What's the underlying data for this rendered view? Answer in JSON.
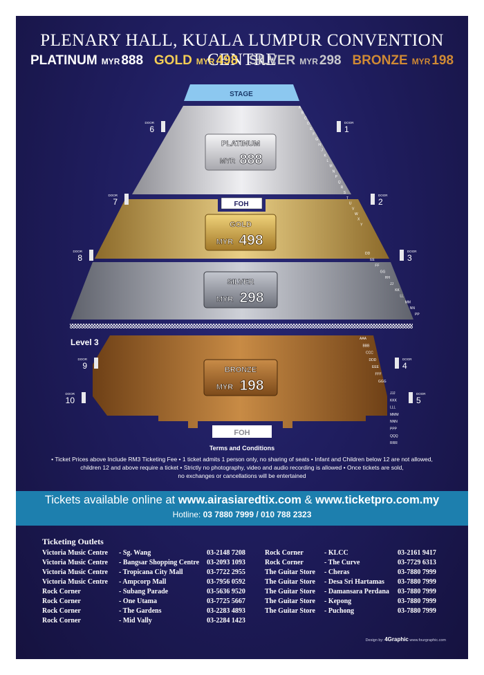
{
  "title": "PLENARY HALL, KUALA LUMPUR CONVENTION CENTRE",
  "prices": {
    "platinum": {
      "name": "PLATINUM",
      "currency": "MYR",
      "amount": "888"
    },
    "gold": {
      "name": "GOLD",
      "currency": "MYR",
      "amount": "498"
    },
    "silver": {
      "name": "SILVER",
      "currency": "MYR",
      "amount": "298"
    },
    "bronze": {
      "name": "BRONZE",
      "currency": "MYR",
      "amount": "198"
    }
  },
  "map": {
    "stage": "STAGE",
    "foh": "FOH",
    "level": "Level 3",
    "door_label": "DOOR",
    "doors": [
      "6",
      "1",
      "7",
      "2",
      "8",
      "3",
      "9",
      "4",
      "10",
      "5"
    ],
    "rows_upper": [
      "A",
      "B",
      "C",
      "D",
      "E",
      "F",
      "G",
      "H",
      "J",
      "K",
      "L",
      "M",
      "N",
      "P",
      "Q",
      "R",
      "S",
      "T",
      "U",
      "V",
      "W",
      "X",
      "Y",
      "DD",
      "EE",
      "FF",
      "GG",
      "HH",
      "JJ",
      "KK",
      "LL",
      "MM",
      "NN",
      "PP"
    ],
    "rows_lower": [
      "AAA",
      "BBB",
      "CCC",
      "DDD",
      "EEE",
      "FFF",
      "GGG",
      "JJJ",
      "KKK",
      "LLL",
      "MMM",
      "NNN",
      "PPP",
      "QQQ",
      "RRR"
    ],
    "colors": {
      "platinum": "#c9c9cd",
      "gold": "#c9a552",
      "silver": "#9da0aa",
      "bronze": "#a76c2c",
      "stage": "#8cc8f0"
    }
  },
  "terms": {
    "heading": "Terms and Conditions",
    "line1": "• Ticket Prices above Include RM3 Ticketing Fee • 1 ticket admits 1 person only, no sharing of seats • Infant and Children below 12 are not allowed,",
    "line2": "children 12 and above require a ticket • Strictly no photography, video and audio recording is allowed • Once tickets are sold,",
    "line3": "no exchanges or cancellations will be entertained"
  },
  "band": {
    "pre": "Tickets available online at",
    "site1": "www.airasiaredtix.com",
    "amp": "&",
    "site2": "www.ticketpro.com.my",
    "hotline_label": "Hotline:",
    "hotline": "03 7880 7999 / 010 788 2323",
    "color": "#1d7fae"
  },
  "outlets": {
    "heading": "Ticketing Outlets",
    "left": [
      {
        "name": "Victoria Music Centre",
        "loc": "- Sg. Wang",
        "phone": "03-2148 7208"
      },
      {
        "name": "Victoria Music Centre",
        "loc": "- Bangsar Shopping Centre",
        "phone": "03-2093 1093"
      },
      {
        "name": "Victoria Music Centre",
        "loc": "- Tropicana City Mall",
        "phone": "03-7722 2955"
      },
      {
        "name": "Victoria Music Centre",
        "loc": "- Ampcorp Mall",
        "phone": "03-7956 0592"
      },
      {
        "name": "Rock Corner",
        "loc": "- Subang Parade",
        "phone": "03-5636 9520"
      },
      {
        "name": "Rock Corner",
        "loc": "- One Utama",
        "phone": "03-7725 5667"
      },
      {
        "name": "Rock Corner",
        "loc": "- The Gardens",
        "phone": "03-2283 4893"
      },
      {
        "name": "Rock Corner",
        "loc": "- Mid Vally",
        "phone": "03-2284 1423"
      }
    ],
    "right": [
      {
        "name": "Rock Corner",
        "loc": "- KLCC",
        "phone": "03-2161 9417"
      },
      {
        "name": "Rock Corner",
        "loc": "- The Curve",
        "phone": "03-7729 6313"
      },
      {
        "name": "The Guitar Store",
        "loc": "- Cheras",
        "phone": "03-7880 7999"
      },
      {
        "name": "The Guitar Store",
        "loc": "- Desa Sri Hartamas",
        "phone": "03-7880 7999"
      },
      {
        "name": "The Guitar Store",
        "loc": "- Damansara Perdana",
        "phone": "03-7880 7999"
      },
      {
        "name": "The Guitar Store",
        "loc": "- Kepong",
        "phone": "03-7880 7999"
      },
      {
        "name": "The Guitar Store",
        "loc": "- Puchong",
        "phone": "03-7880 7999"
      }
    ]
  },
  "credit": {
    "prefix": "Design by:",
    "logo": "4Graphic",
    "url": "www.fourgraphic.com"
  }
}
